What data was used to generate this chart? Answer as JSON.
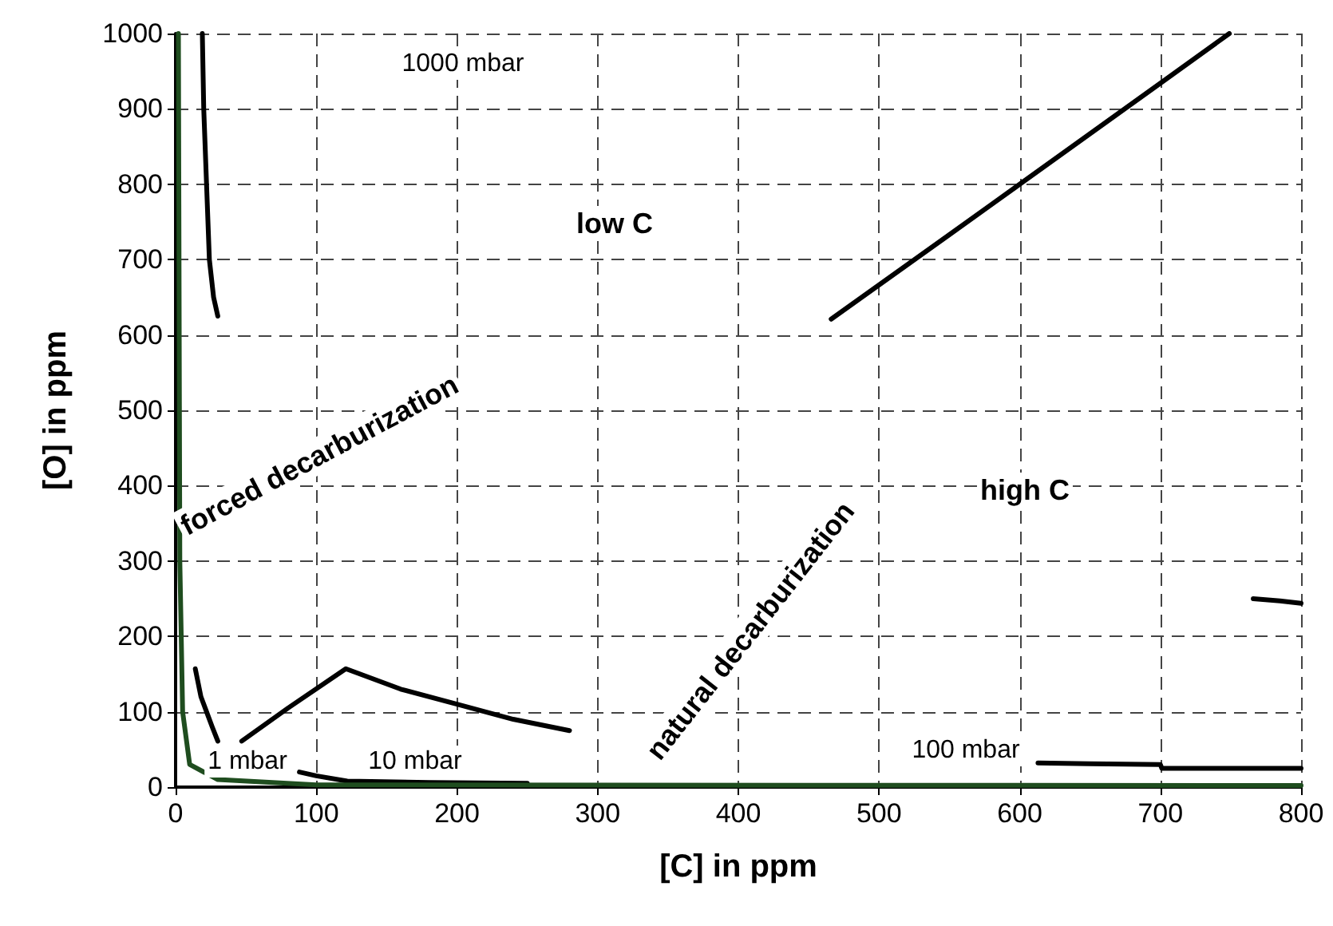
{
  "chart_data": {
    "type": "line",
    "xlabel": "[C] in ppm",
    "ylabel": "[O] in ppm",
    "xlim": [
      0,
      800
    ],
    "xticks": [
      0,
      100,
      200,
      300,
      400,
      500,
      600,
      700,
      800
    ],
    "ylim": [
      0,
      1000
    ],
    "yticks": [
      0,
      100,
      200,
      300,
      400,
      500,
      600,
      700,
      800,
      900,
      1000
    ],
    "grid": true,
    "marker": "none",
    "line_style": "solid",
    "series": [
      {
        "color": "#000000",
        "x": [
          19,
          20,
          22,
          24,
          27,
          30
        ],
        "values": [
          1000,
          900,
          800,
          700,
          650,
          625
        ]
      },
      {
        "color": "#000000",
        "x": [
          14,
          18,
          22,
          26,
          30
        ],
        "values": [
          157,
          120,
          100,
          80,
          61
        ]
      },
      {
        "color": "#000000",
        "x": [
          47,
          80,
          121,
          160,
          200,
          240,
          280
        ],
        "values": [
          61,
          105,
          157,
          130,
          110,
          90,
          75
        ]
      },
      {
        "color": "#000000",
        "x": [
          88,
          100,
          122,
          180,
          250
        ],
        "values": [
          20,
          15,
          8,
          6,
          5
        ]
      },
      {
        "color": "#000000",
        "x": [
          466,
          550,
          600,
          650,
          700,
          749
        ],
        "values": [
          621,
          733,
          800,
          867,
          934,
          1000
        ]
      },
      {
        "color": "#000000",
        "x": [
          766,
          785,
          800
        ],
        "values": [
          250,
          247,
          244
        ]
      },
      {
        "color": "#000000",
        "x": [
          613,
          650,
          700,
          701,
          800
        ],
        "values": [
          32,
          31,
          30,
          25,
          25
        ]
      },
      {
        "color": "#1f4d1f",
        "x": [
          2,
          3,
          5,
          10,
          30,
          100,
          800
        ],
        "values": [
          1000,
          300,
          100,
          30,
          10,
          3,
          2
        ]
      }
    ],
    "annotations": [
      "low C",
      "high C",
      "forced decarburization",
      "natural decarburization",
      "1 mbar",
      "10 mbar",
      "100 mbar",
      "1000 mbar"
    ]
  }
}
